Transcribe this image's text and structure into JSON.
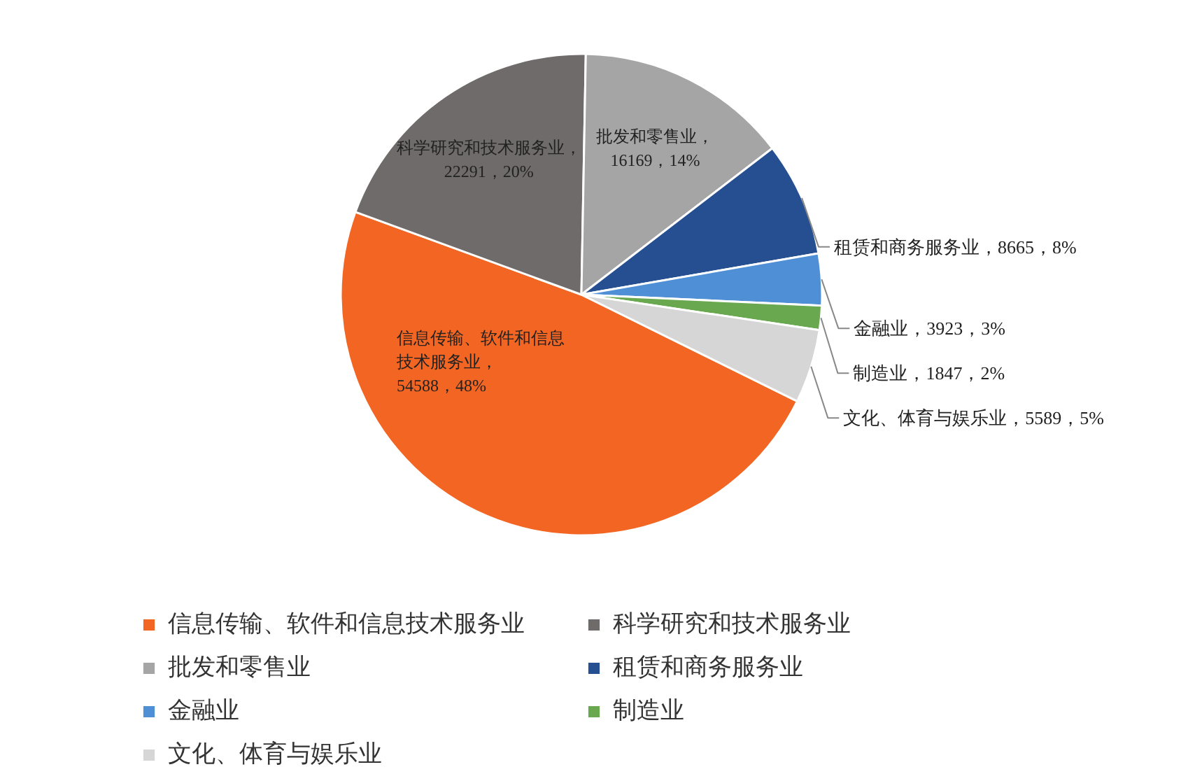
{
  "chart_data": {
    "type": "pie",
    "categories": [
      "信息传输、软件和信息技术服务业",
      "科学研究和技术服务业",
      "批发和零售业",
      "租赁和商务服务业",
      "金融业",
      "制造业",
      "文化、体育与娱乐业"
    ],
    "values": [
      54588,
      22291,
      16169,
      8665,
      3923,
      1847,
      5589
    ],
    "colors": [
      "#f26522",
      "#6f6b6a",
      "#a5a5a5",
      "#264f91",
      "#4f8fd6",
      "#6aa84f",
      "#d6d6d6"
    ],
    "value_labels": [
      "信息传输、软件和信息技术服务业，54588，48%",
      "科学研究和技术服务业，22291，20%",
      "批发和零售业，16169，14%",
      "租赁和商务服务业，8665，8%",
      "金融业，3923，3%",
      "制造业，1847，2%",
      "文化、体育与娱乐业，5589，5%"
    ],
    "legend": "bottom"
  }
}
